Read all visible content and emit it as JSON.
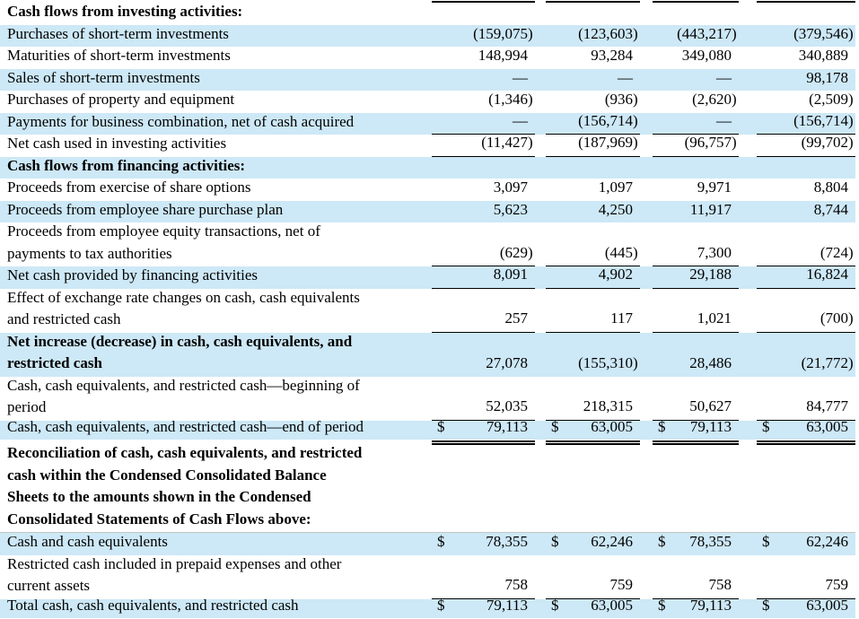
{
  "page": {
    "background": "#ffffff"
  },
  "colors": {
    "stripe": "#cde8f6",
    "rule": "#000000",
    "faint_rule": "#c4c4c4"
  },
  "table": {
    "top_rule": true,
    "currency_symbol": "$",
    "em_dash": "—",
    "rows": [
      {
        "label": "Cash flows from investing activities:",
        "bold": true,
        "shaded": false,
        "lines": 1,
        "dollar": false,
        "values": [],
        "border_bottom": "none",
        "rule_top": false
      },
      {
        "label": "Purchases of short-term investments",
        "bold": false,
        "shaded": true,
        "lines": 1,
        "dollar": false,
        "values": [
          "(159,075)",
          "(123,603)",
          "(443,217)",
          "(379,546)"
        ],
        "border_bottom": "none",
        "rule_top": false
      },
      {
        "label": "Maturities of short-term investments",
        "bold": false,
        "shaded": false,
        "lines": 1,
        "dollar": false,
        "values": [
          "148,994",
          "93,284",
          "349,080",
          "340,889"
        ],
        "border_bottom": "none",
        "rule_top": false
      },
      {
        "label": "Sales of short-term investments",
        "bold": false,
        "shaded": true,
        "lines": 1,
        "dollar": false,
        "values": [
          "—",
          "—",
          "—",
          "98,178"
        ],
        "border_bottom": "none",
        "rule_top": false
      },
      {
        "label": "Purchases of property and equipment",
        "bold": false,
        "shaded": false,
        "lines": 1,
        "dollar": false,
        "values": [
          "(1,346)",
          "(936)",
          "(2,620)",
          "(2,509)"
        ],
        "border_bottom": "none",
        "rule_top": false
      },
      {
        "label": "Payments for business combination, net of cash acquired",
        "bold": false,
        "shaded": true,
        "lines": 1,
        "dollar": false,
        "values": [
          "—",
          "(156,714)",
          "—",
          "(156,714)"
        ],
        "border_bottom": "single",
        "rule_top": false
      },
      {
        "label": "Net cash used in investing activities",
        "bold": false,
        "shaded": false,
        "lines": 1,
        "dollar": false,
        "values": [
          "(11,427)",
          "(187,969)",
          "(96,757)",
          "(99,702)"
        ],
        "border_bottom": "single",
        "rule_top": false
      },
      {
        "label": "Cash flows from financing activities:",
        "bold": true,
        "shaded": true,
        "lines": 1,
        "dollar": false,
        "values": [],
        "border_bottom": "none",
        "rule_top": false
      },
      {
        "label": "Proceeds from exercise of share options",
        "bold": false,
        "shaded": false,
        "lines": 1,
        "dollar": false,
        "values": [
          "3,097",
          "1,097",
          "9,971",
          "8,804"
        ],
        "border_bottom": "none",
        "rule_top": false
      },
      {
        "label": "Proceeds from employee share purchase plan",
        "bold": false,
        "shaded": true,
        "lines": 1,
        "dollar": false,
        "values": [
          "5,623",
          "4,250",
          "11,917",
          "8,744"
        ],
        "border_bottom": "none",
        "rule_top": false
      },
      {
        "label": "Proceeds from employee equity transactions, net of\npayments to tax authorities",
        "bold": false,
        "shaded": false,
        "lines": 2,
        "dollar": false,
        "values": [
          "(629)",
          "(445)",
          "7,300",
          "(724)"
        ],
        "border_bottom": "single",
        "rule_top": false
      },
      {
        "label": "Net cash provided by financing activities",
        "bold": false,
        "shaded": true,
        "lines": 1,
        "dollar": false,
        "values": [
          "8,091",
          "4,902",
          "29,188",
          "16,824"
        ],
        "border_bottom": "single",
        "rule_top": false
      },
      {
        "label": "Effect of exchange rate changes on cash, cash equivalents\nand restricted cash",
        "bold": false,
        "shaded": false,
        "lines": 2,
        "dollar": false,
        "values": [
          "257",
          "117",
          "1,021",
          "(700)"
        ],
        "border_bottom": "single",
        "rule_top": false
      },
      {
        "label": "Net increase (decrease) in cash, cash equivalents, and\nrestricted cash",
        "bold": true,
        "shaded": true,
        "lines": 2,
        "dollar": false,
        "values": [
          "27,078",
          "(155,310)",
          "28,486",
          "(21,772)"
        ],
        "border_bottom": "none",
        "rule_top": false
      },
      {
        "label": "Cash, cash equivalents, and restricted cash—beginning of\nperiod",
        "bold": false,
        "shaded": false,
        "lines": 2,
        "dollar": false,
        "values": [
          "52,035",
          "218,315",
          "50,627",
          "84,777"
        ],
        "border_bottom": "single",
        "rule_top": false
      },
      {
        "label": "Cash, cash equivalents, and restricted cash—end of period",
        "bold": false,
        "shaded": true,
        "lines": 1,
        "dollar": true,
        "values": [
          "79,113",
          "63,005",
          "79,113",
          "63,005"
        ],
        "border_bottom": "double",
        "rule_top": false
      },
      {
        "label": "Reconciliation of cash, cash equivalents, and restricted\ncash within the Condensed Consolidated Balance\nSheets to the amounts shown in the Condensed\nConsolidated Statements of Cash Flows above:",
        "bold": true,
        "shaded": false,
        "lines": 4,
        "dollar": false,
        "values": [],
        "border_bottom": "none",
        "rule_top": false
      },
      {
        "label": "Cash and cash equivalents",
        "bold": false,
        "shaded": true,
        "lines": 1,
        "dollar": true,
        "values": [
          "78,355",
          "62,246",
          "78,355",
          "62,246"
        ],
        "border_bottom": "none",
        "rule_top": true
      },
      {
        "label": "Restricted cash included in prepaid expenses and other\ncurrent assets",
        "bold": false,
        "shaded": false,
        "lines": 2,
        "dollar": false,
        "values": [
          "758",
          "759",
          "758",
          "759"
        ],
        "border_bottom": "single",
        "rule_top": false
      },
      {
        "label": "Total cash, cash equivalents, and restricted cash",
        "bold": false,
        "shaded": true,
        "lines": 1,
        "dollar": true,
        "values": [
          "79,113",
          "63,005",
          "79,113",
          "63,005"
        ],
        "border_bottom": "double",
        "rule_top": false
      }
    ]
  }
}
